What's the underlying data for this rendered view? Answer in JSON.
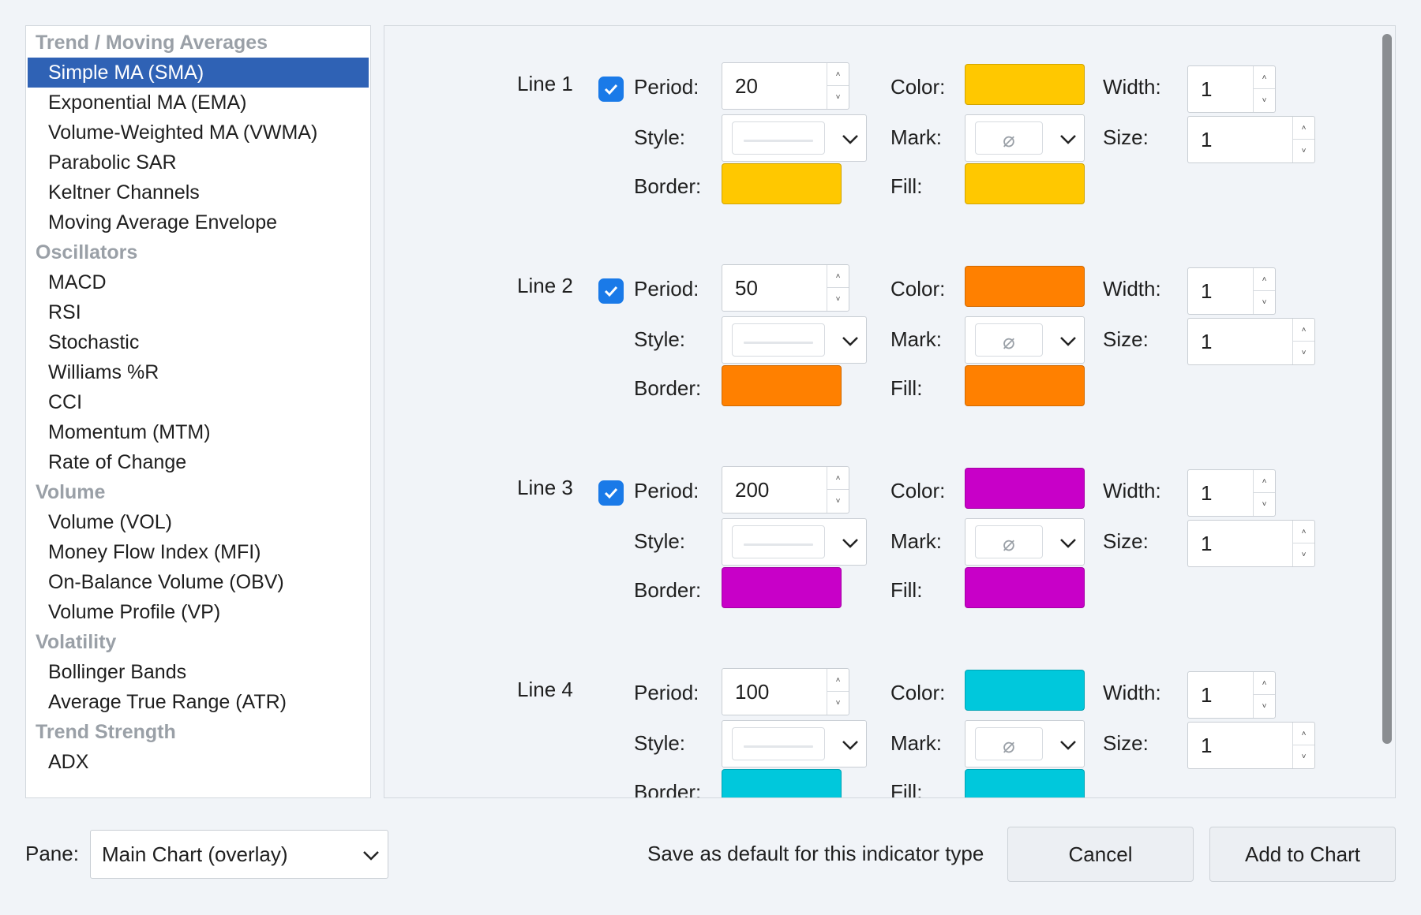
{
  "indicator_list": [
    {
      "kind": "header",
      "label": "Trend / Moving Averages"
    },
    {
      "kind": "item",
      "label": "Simple MA (SMA)",
      "selected": true
    },
    {
      "kind": "item",
      "label": "Exponential MA (EMA)"
    },
    {
      "kind": "item",
      "label": "Volume-Weighted MA (VWMA)"
    },
    {
      "kind": "item",
      "label": "Parabolic SAR"
    },
    {
      "kind": "item",
      "label": "Keltner Channels"
    },
    {
      "kind": "item",
      "label": "Moving Average Envelope"
    },
    {
      "kind": "header",
      "label": "Oscillators"
    },
    {
      "kind": "item",
      "label": "MACD"
    },
    {
      "kind": "item",
      "label": "RSI"
    },
    {
      "kind": "item",
      "label": "Stochastic"
    },
    {
      "kind": "item",
      "label": "Williams %R"
    },
    {
      "kind": "item",
      "label": "CCI"
    },
    {
      "kind": "item",
      "label": "Momentum (MTM)"
    },
    {
      "kind": "item",
      "label": "Rate of Change"
    },
    {
      "kind": "header",
      "label": "Volume"
    },
    {
      "kind": "item",
      "label": "Volume (VOL)"
    },
    {
      "kind": "item",
      "label": "Money Flow Index (MFI)"
    },
    {
      "kind": "item",
      "label": "On-Balance Volume (OBV)"
    },
    {
      "kind": "item",
      "label": "Volume Profile (VP)"
    },
    {
      "kind": "header",
      "label": "Volatility"
    },
    {
      "kind": "item",
      "label": "Bollinger Bands"
    },
    {
      "kind": "item",
      "label": "Average True Range (ATR)"
    },
    {
      "kind": "header",
      "label": "Trend Strength"
    },
    {
      "kind": "item",
      "label": "ADX"
    }
  ],
  "field_labels": {
    "period": "Period:",
    "color": "Color:",
    "width": "Width:",
    "style": "Style:",
    "mark": "Mark:",
    "size": "Size:",
    "border": "Border:",
    "fill": "Fill:"
  },
  "lines": [
    {
      "label": "Line 1",
      "enabled": true,
      "period": "20",
      "color": "#ffc800",
      "width": "1",
      "size": "1",
      "border_color": "#ffc800",
      "fill_color": "#ffc800"
    },
    {
      "label": "Line 2",
      "enabled": true,
      "period": "50",
      "color": "#ff8000",
      "width": "1",
      "size": "1",
      "border_color": "#ff8000",
      "fill_color": "#ff8000"
    },
    {
      "label": "Line 3",
      "enabled": true,
      "period": "200",
      "color": "#c800c8",
      "width": "1",
      "size": "1",
      "border_color": "#c800c8",
      "fill_color": "#c800c8"
    },
    {
      "label": "Line 4",
      "enabled": false,
      "period": "100",
      "color": "#00c8dc",
      "width": "1",
      "size": "1",
      "border_color": "#00c8dc",
      "fill_color": "#00c8dc"
    }
  ],
  "mark_symbol": "⌀",
  "footer": {
    "pane_label": "Pane:",
    "pane_value": "Main Chart (overlay)",
    "save_default_label": "Save as default for this indicator type",
    "cancel_label": "Cancel",
    "add_label": "Add to Chart"
  },
  "colors": {
    "selection": "#2f62b5",
    "checkbox": "#1a7ae8"
  }
}
